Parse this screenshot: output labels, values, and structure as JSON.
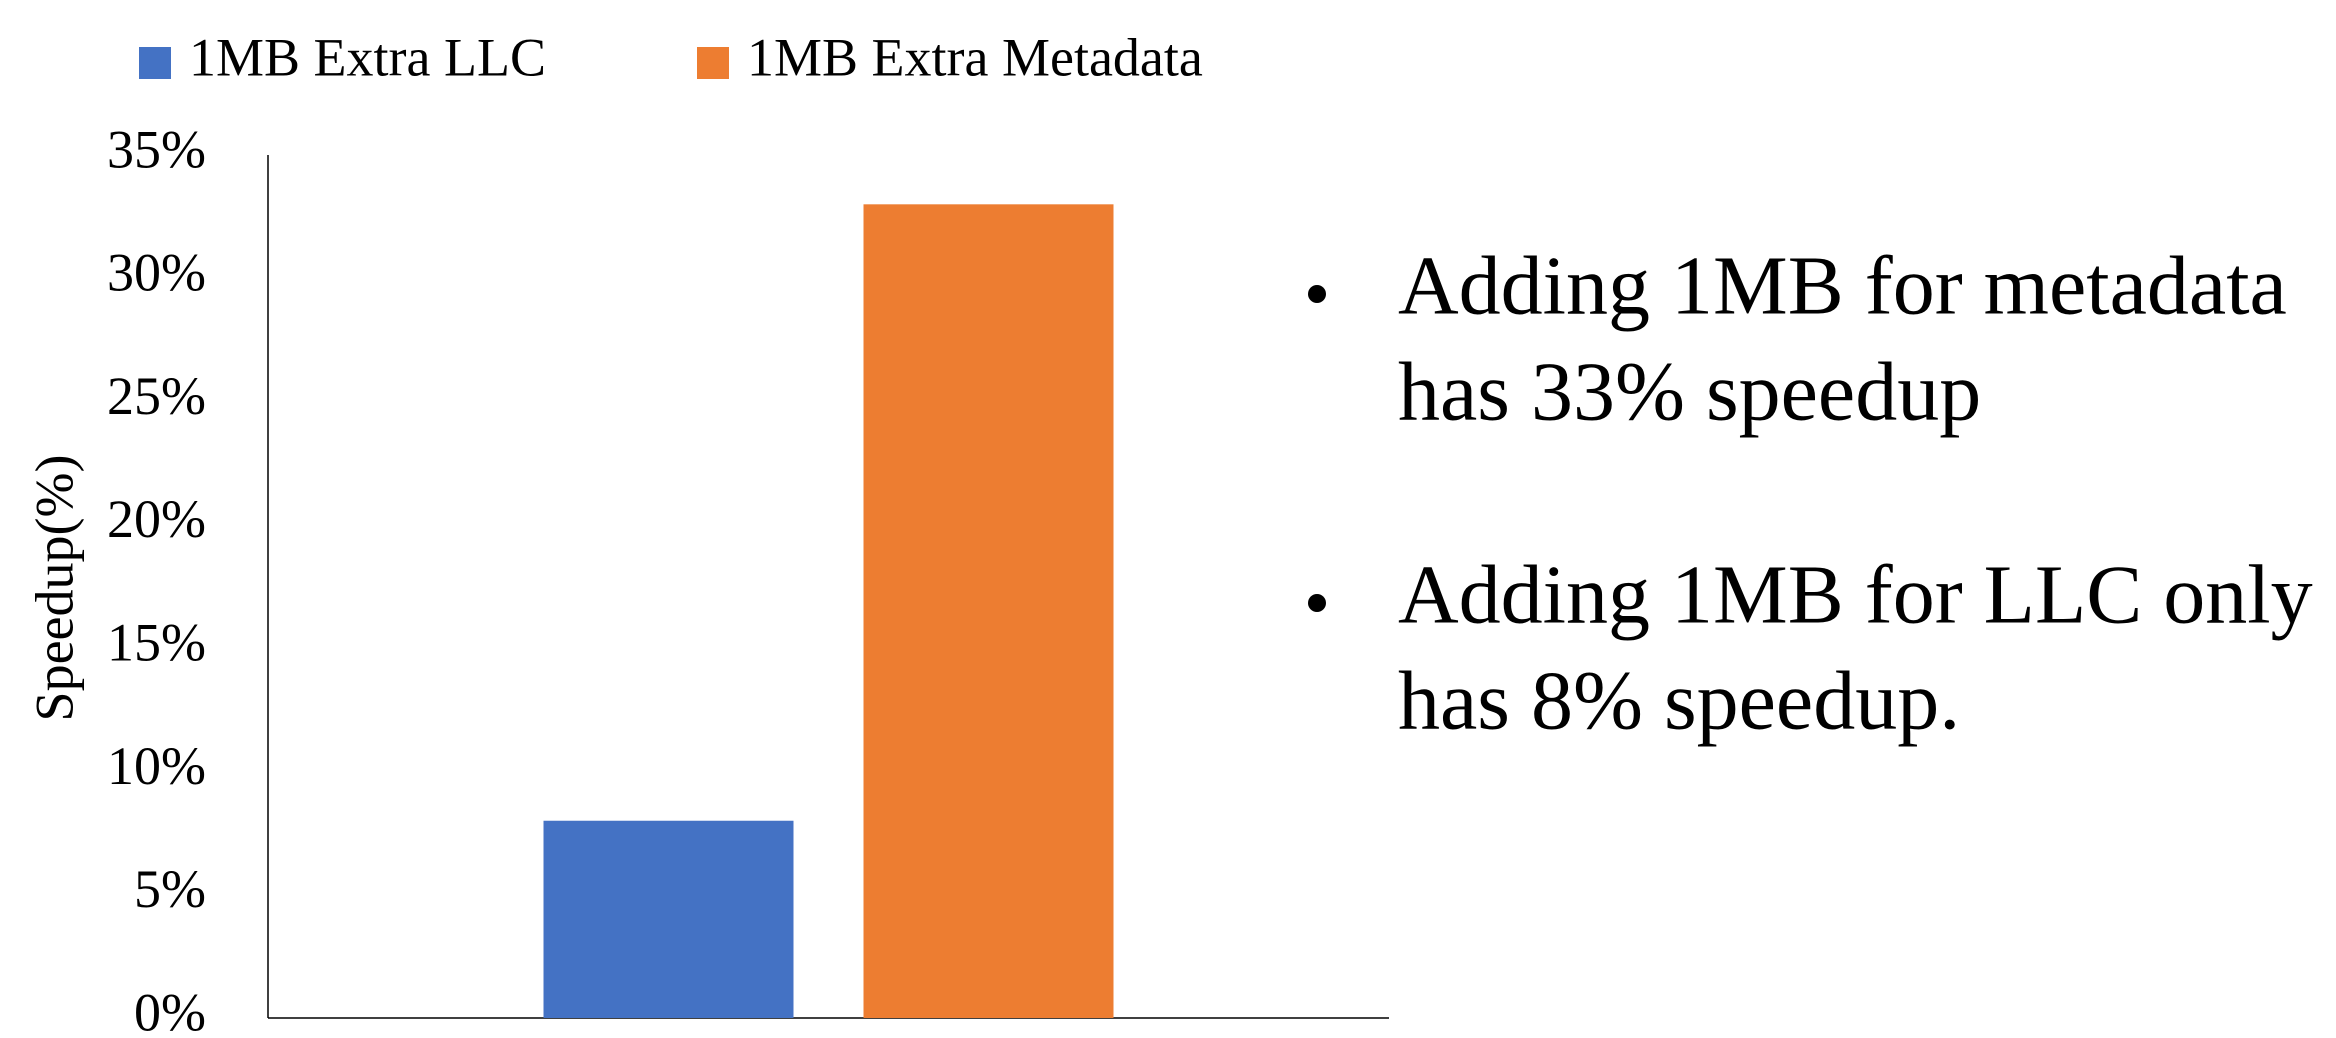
{
  "chart_data": {
    "type": "bar",
    "categories": [
      null
    ],
    "series": [
      {
        "name": "1MB Extra LLC",
        "color": "#4472c4",
        "values": [
          8
        ]
      },
      {
        "name": "1MB Extra Metadata",
        "color": "#ed7d31",
        "values": [
          33
        ]
      }
    ],
    "ylabel": "Speedup(%)",
    "ylim": [
      0,
      35
    ],
    "yticks": [
      {
        "value": 0,
        "label": "0%"
      },
      {
        "value": 5,
        "label": "5%"
      },
      {
        "value": 10,
        "label": "10%"
      },
      {
        "value": 15,
        "label": "15%"
      },
      {
        "value": 20,
        "label": "20%"
      },
      {
        "value": 25,
        "label": "25%"
      },
      {
        "value": 30,
        "label": "30%"
      },
      {
        "value": 35,
        "label": "35%"
      }
    ],
    "grid": false,
    "legend": "top",
    "bullets": [
      [
        "Adding 1MB for metadata",
        "has 33% speedup"
      ],
      [
        "Adding 1MB for LLC only",
        "has 8% speedup."
      ]
    ]
  }
}
